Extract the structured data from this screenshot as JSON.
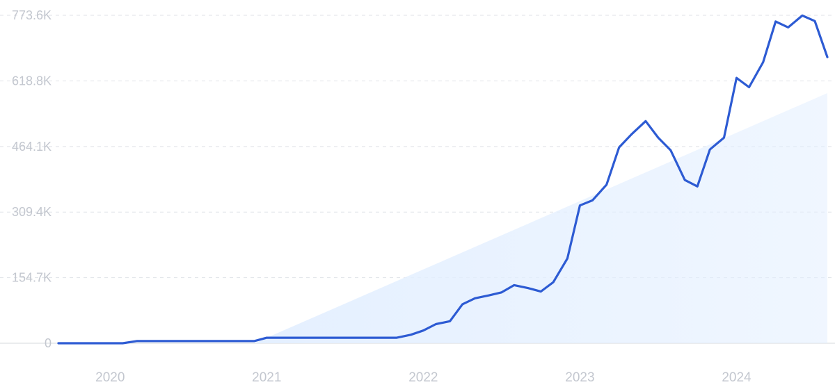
{
  "chart_data": {
    "type": "line",
    "title": "",
    "xlabel": "",
    "ylabel": "",
    "x_ticks": [
      "2020",
      "2021",
      "2022",
      "2023",
      "2024"
    ],
    "x_tick_values": [
      2020.0,
      2021.0,
      2022.0,
      2023.0,
      2024.0
    ],
    "y_ticks": [
      "0",
      "154.7K",
      "309.4K",
      "464.1K",
      "618.8K",
      "773.6K"
    ],
    "y_tick_values": [
      0,
      154700,
      309400,
      464100,
      618800,
      773600
    ],
    "xlim": [
      2019.67,
      2024.58
    ],
    "ylim": [
      0,
      773600
    ],
    "grid": true,
    "colors": {
      "line": "#2d5bd3",
      "trend_fill": "#e3efff"
    },
    "series": [
      {
        "x": [
          2019.67,
          2019.75,
          2019.83,
          2019.92,
          2020.0,
          2020.08,
          2020.17,
          2020.25,
          2020.33,
          2020.42,
          2020.5,
          2020.58,
          2020.67,
          2020.75,
          2020.83,
          2020.92,
          2021.0,
          2021.08,
          2021.17,
          2021.25,
          2021.33,
          2021.42,
          2021.5,
          2021.58,
          2021.67,
          2021.75,
          2021.83,
          2021.92,
          2022.0,
          2022.08,
          2022.17,
          2022.25,
          2022.33,
          2022.42,
          2022.5,
          2022.58,
          2022.67,
          2022.75,
          2022.83,
          2022.92,
          2023.0,
          2023.08,
          2023.17,
          2023.25,
          2023.33,
          2023.42,
          2023.5,
          2023.58,
          2023.67,
          2023.75,
          2023.83,
          2023.92,
          2024.0,
          2024.08,
          2024.17,
          2024.25,
          2024.33,
          2024.42,
          2024.5,
          2024.58
        ],
        "y": [
          0,
          0,
          0,
          0,
          0,
          0,
          5000,
          5000,
          5000,
          5000,
          5000,
          5000,
          5000,
          5000,
          5000,
          5000,
          13000,
          13000,
          13000,
          13000,
          13000,
          13000,
          13000,
          13000,
          13000,
          13000,
          13000,
          20000,
          30000,
          45000,
          52000,
          92000,
          106000,
          113000,
          120000,
          137000,
          130000,
          122000,
          144000,
          200000,
          325000,
          337000,
          374000,
          462000,
          493000,
          524000,
          485000,
          455000,
          385000,
          370000,
          457000,
          485000,
          626000,
          604000,
          663000,
          759000,
          745000,
          773000,
          760000,
          675000
        ]
      }
    ],
    "trend": {
      "x": [
        2020.92,
        2024.58
      ],
      "y": [
        0,
        590000
      ]
    }
  }
}
